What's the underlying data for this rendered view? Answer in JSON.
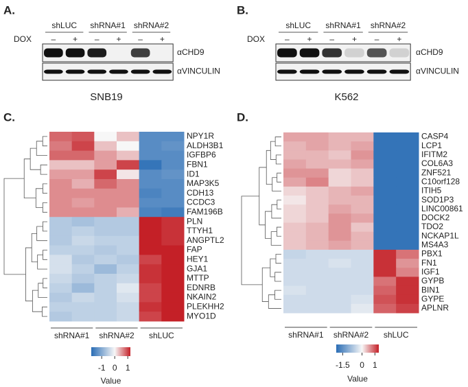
{
  "blots": [
    {
      "label": "A.",
      "lane_groups": [
        "shLUC",
        "shRNA#1",
        "shRNA#2"
      ],
      "treatment": "DOX",
      "dox_signs": [
        "–",
        "+"
      ],
      "antibodies": [
        "αCHD9",
        "αVINCULIN"
      ],
      "cell_line": "SNB19"
    },
    {
      "label": "B.",
      "lane_groups": [
        "shLUC",
        "shRNA#1",
        "shRNA#2"
      ],
      "treatment": "DOX",
      "dox_signs": [
        "–",
        "+"
      ],
      "antibodies": [
        "αCHD9",
        "αVINCULIN"
      ],
      "cell_line": "K562"
    }
  ],
  "chart_data": [
    {
      "type": "heatmap",
      "label": "C.",
      "rows": [
        "NPY1R",
        "ALDH3B1",
        "IGFBP6",
        "FBN1",
        "ID1",
        "MAP3K5",
        "CDH13",
        "CCDC3",
        "FAM196B",
        "PLN",
        "TTYH1",
        "ANGPTL2",
        "FAP",
        "HEY1",
        "GJA1",
        "MTTP",
        "EDNRB",
        "NKAIN2",
        "PLEKHH2",
        "MYO1D"
      ],
      "column_groups": [
        "shRNA#1",
        "shRNA#2",
        "shLUC"
      ],
      "values": [
        [
          0.8,
          0.9,
          0.0,
          0.3,
          -1.4,
          -1.4
        ],
        [
          0.7,
          1.0,
          0.3,
          0.0,
          -1.4,
          -1.3
        ],
        [
          0.8,
          0.8,
          0.5,
          0.3,
          -1.4,
          -1.4
        ],
        [
          0.3,
          0.3,
          0.5,
          1.0,
          -1.7,
          -1.4
        ],
        [
          0.5,
          0.5,
          1.0,
          0.1,
          -1.4,
          -1.3
        ],
        [
          0.6,
          0.4,
          0.8,
          0.6,
          -1.4,
          -1.4
        ],
        [
          0.6,
          0.6,
          0.6,
          0.6,
          -1.5,
          -1.4
        ],
        [
          0.6,
          0.5,
          0.6,
          0.6,
          -1.4,
          -1.4
        ],
        [
          0.6,
          0.6,
          0.6,
          0.4,
          -1.5,
          -1.6
        ],
        [
          -0.6,
          -0.7,
          -0.6,
          -0.6,
          1.2,
          1.1
        ],
        [
          -0.6,
          -0.5,
          -0.6,
          -0.6,
          1.2,
          1.1
        ],
        [
          -0.6,
          -0.4,
          -0.5,
          -0.5,
          1.2,
          1.1
        ],
        [
          -0.5,
          -0.5,
          -0.6,
          -0.5,
          1.2,
          1.2
        ],
        [
          -0.3,
          -0.6,
          -0.5,
          -0.6,
          1.0,
          1.2
        ],
        [
          -0.3,
          -0.5,
          -0.8,
          -0.5,
          1.1,
          1.2
        ],
        [
          -0.4,
          -0.6,
          -0.5,
          -0.4,
          1.1,
          1.2
        ],
        [
          -0.5,
          -0.8,
          -0.5,
          -0.2,
          1.0,
          1.2
        ],
        [
          -0.6,
          -0.4,
          -0.5,
          -0.3,
          1.0,
          1.2
        ],
        [
          -0.5,
          -0.5,
          -0.5,
          -0.4,
          1.1,
          1.2
        ],
        [
          -0.6,
          -0.5,
          -0.5,
          -0.4,
          1.0,
          1.3
        ]
      ],
      "colors": [
        "#2a6db5",
        "#f7f7f7",
        "#c42027"
      ],
      "zlim": [
        -1.8,
        1.2
      ],
      "zticks": [
        -1,
        0,
        1
      ],
      "colorbar_title": "Value"
    },
    {
      "type": "heatmap",
      "label": "D.",
      "rows": [
        "CASP4",
        "LCP1",
        "IFITM2",
        "COL6A3",
        "ZNF521",
        "C10orf128",
        "ITIH5",
        "SOD1P3",
        "LINC00861",
        "DOCK2",
        "TDO2",
        "NCKAP1L",
        "MS4A3",
        "PBX1",
        "FN1",
        "IGF1",
        "GYPB",
        "BIN1",
        "GYPE",
        "APLNR"
      ],
      "column_groups": [
        "shRNA#1",
        "shRNA#2",
        "shLUC"
      ],
      "values": [
        [
          0.5,
          0.5,
          0.4,
          0.4,
          -1.9,
          -1.9
        ],
        [
          0.4,
          0.5,
          0.4,
          0.5,
          -1.9,
          -1.9
        ],
        [
          0.4,
          0.4,
          0.3,
          0.6,
          -1.9,
          -1.9
        ],
        [
          0.5,
          0.4,
          0.4,
          0.5,
          -1.9,
          -1.9
        ],
        [
          0.6,
          0.6,
          0.2,
          0.3,
          -1.9,
          -1.9
        ],
        [
          0.5,
          0.7,
          0.2,
          0.3,
          -1.9,
          -1.9
        ],
        [
          0.2,
          0.3,
          0.4,
          0.5,
          -1.9,
          -1.9
        ],
        [
          0.1,
          0.3,
          0.4,
          0.4,
          -1.9,
          -1.9
        ],
        [
          0.2,
          0.3,
          0.5,
          0.4,
          -1.9,
          -1.9
        ],
        [
          0.2,
          0.3,
          0.6,
          0.5,
          -1.9,
          -1.9
        ],
        [
          0.3,
          0.4,
          0.6,
          0.3,
          -1.9,
          -1.9
        ],
        [
          0.3,
          0.4,
          0.6,
          0.4,
          -1.9,
          -1.9
        ],
        [
          0.3,
          0.4,
          0.5,
          0.4,
          -1.9,
          -1.9
        ],
        [
          -0.5,
          -0.4,
          -0.4,
          -0.4,
          1.2,
          0.8
        ],
        [
          -0.4,
          -0.4,
          -0.3,
          -0.4,
          1.2,
          0.6
        ],
        [
          -0.4,
          -0.4,
          -0.4,
          -0.4,
          1.2,
          0.7
        ],
        [
          -0.4,
          -0.4,
          -0.4,
          -0.4,
          0.8,
          1.2
        ],
        [
          -0.3,
          -0.4,
          -0.4,
          -0.4,
          0.9,
          1.2
        ],
        [
          -0.4,
          -0.4,
          -0.4,
          -0.3,
          1.0,
          1.2
        ],
        [
          -0.4,
          -0.4,
          -0.4,
          -0.2,
          0.9,
          1.1
        ]
      ],
      "colors": [
        "#2a6db5",
        "#f7f7f7",
        "#c42027"
      ],
      "zlim": [
        -2,
        1.3
      ],
      "zticks": [
        -1.5,
        0,
        1
      ],
      "colorbar_title": "Value"
    }
  ]
}
